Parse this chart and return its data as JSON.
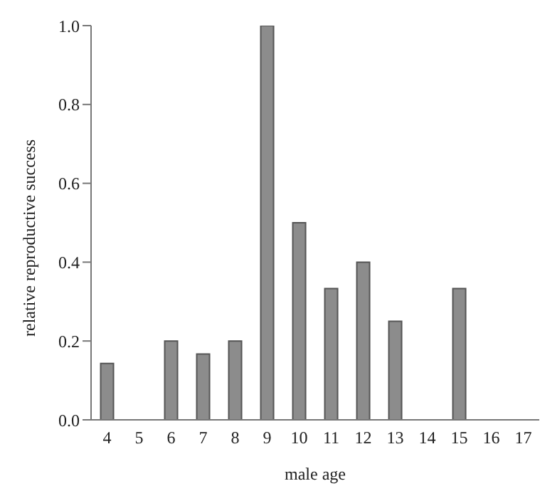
{
  "chart_data": {
    "type": "bar",
    "xlabel": "male age",
    "ylabel": "relative reproductive success",
    "categories": [
      "4",
      "5",
      "6",
      "7",
      "8",
      "9",
      "10",
      "11",
      "12",
      "13",
      "14",
      "15",
      "16",
      "17"
    ],
    "values": [
      0.143,
      0,
      0.2,
      0.167,
      0.2,
      1.0,
      0.5,
      0.333,
      0.4,
      0.25,
      0,
      0.333,
      0,
      0
    ],
    "color": "#8c8c8c",
    "ylim": [
      0,
      1.0
    ],
    "yticks": [
      {
        "value": 0,
        "label": "0.0"
      },
      {
        "value": 0.2,
        "label": "0.2"
      },
      {
        "value": 0.4,
        "label": "0.4"
      },
      {
        "value": 0.6,
        "label": "0.6"
      },
      {
        "value": 0.8,
        "label": "0.8"
      },
      {
        "value": 1.0,
        "label": "1.0"
      }
    ],
    "grid": false
  }
}
